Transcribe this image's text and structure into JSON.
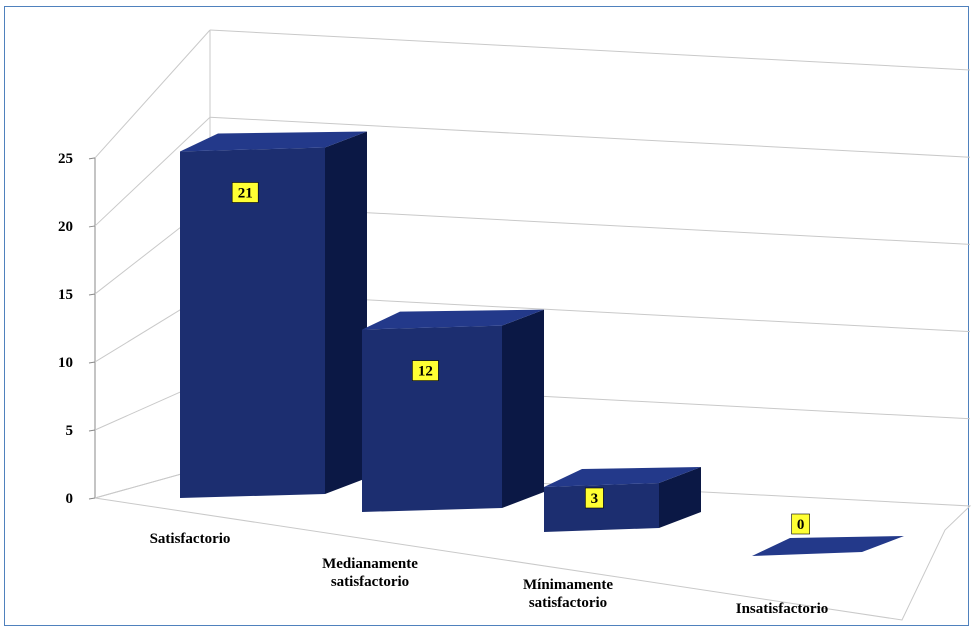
{
  "chart_data": {
    "type": "bar",
    "categories": [
      [
        "Satisfactorio"
      ],
      [
        "Medianamente",
        "satisfactorio"
      ],
      [
        "Mínimamente",
        "satisfactorio"
      ],
      [
        "Insatisfactorio"
      ]
    ],
    "values": [
      21,
      12,
      3,
      0
    ],
    "y_ticks": [
      "0",
      "5",
      "10",
      "15",
      "20",
      "25"
    ],
    "ylim": [
      0,
      25
    ],
    "grid": true,
    "style": "3d-column",
    "colors": {
      "bar_front": "#1c2e70",
      "bar_side": "#0b1845",
      "bar_top": "#23398a",
      "label_bg": "#ffff33",
      "frame": "#4f81bd",
      "grid": "#c9c9c9"
    }
  }
}
